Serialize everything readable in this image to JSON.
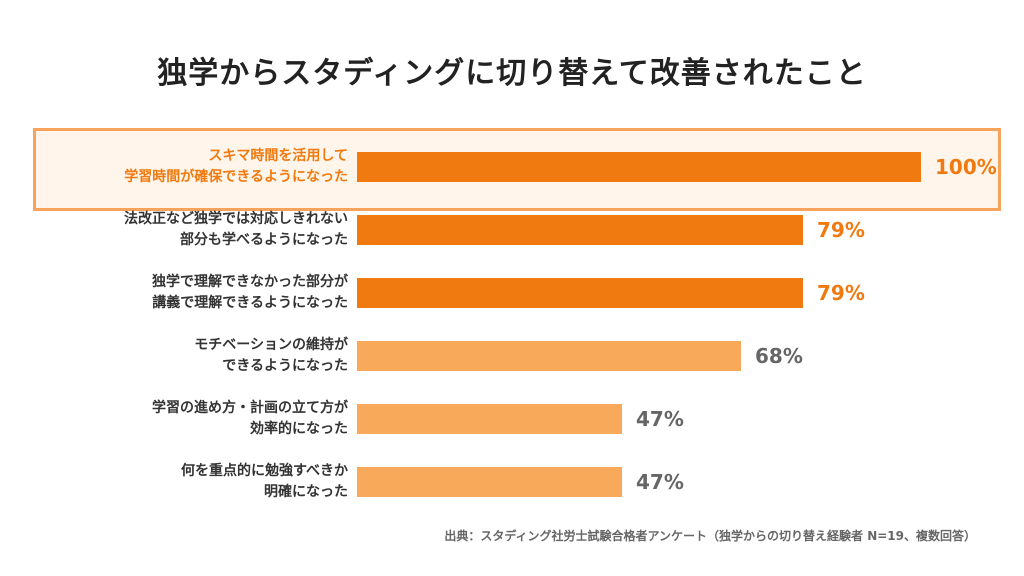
{
  "title": "独学からスタディングに切り替えて改善されたこと",
  "source": "出典：スタディング社労士試験合格者アンケート（独学からの切り替え経験者 N=19、複数回答）",
  "colors": {
    "strong": "#f07a10",
    "light": "#f9a95a",
    "value_strong": "#f07a10",
    "value_light": "#666666"
  },
  "chart_data": {
    "type": "bar",
    "orientation": "horizontal",
    "title": "独学からスタディングに切り替えて改善されたこと",
    "unit": "%",
    "xlim": [
      0,
      100
    ],
    "categories": [
      [
        "スキマ時間を活用して",
        "学習時間が確保できるようになった"
      ],
      [
        "法改正など独学では対応しきれない",
        "部分も学べるようになった"
      ],
      [
        "独学で理解できなかった部分が",
        "講義で理解できるようになった"
      ],
      [
        "モチベーションの維持が",
        "できるようになった"
      ],
      [
        "学習の進め方・計画の立て方が",
        "効率的になった"
      ],
      [
        "何を重点的に勉強すべきか",
        "明確になった"
      ]
    ],
    "values": [
      100,
      79,
      79,
      68,
      47,
      47
    ],
    "value_labels": [
      "100%",
      "79%",
      "79%",
      "68%",
      "47%",
      "47%"
    ],
    "emphasis": [
      true,
      true,
      true,
      false,
      false,
      false
    ],
    "highlighted_index": 0
  }
}
